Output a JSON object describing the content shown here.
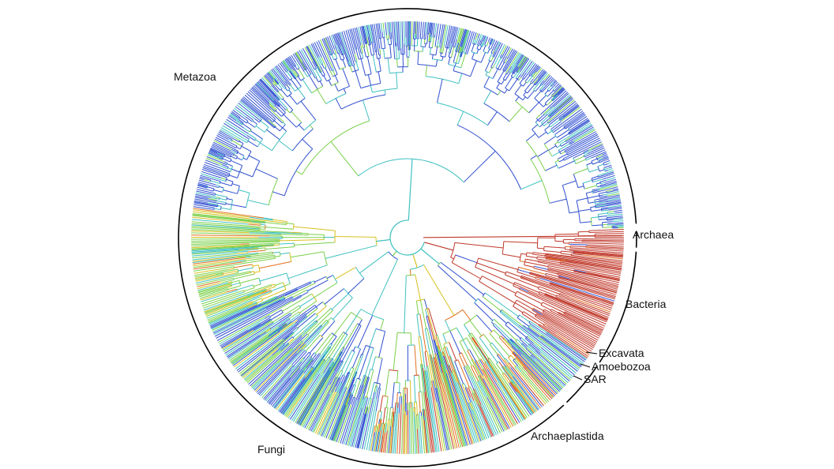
{
  "figure": {
    "type": "circular-phylogenetic-tree",
    "clades": [
      {
        "label": "Metazoa",
        "color": "#3f5fd0"
      },
      {
        "label": "Archaea",
        "color": "#c0392b"
      },
      {
        "label": "Bacteria",
        "color": "#c0392b"
      },
      {
        "label": "Excavata",
        "color": "#2e6fb5"
      },
      {
        "label": "Amoebozoa",
        "color": "#2e6fb5"
      },
      {
        "label": "SAR",
        "color": "#2e6fb5"
      },
      {
        "label": "Archaeplastida",
        "color": "#7ac943"
      },
      {
        "label": "Fungi",
        "color": "#2e6fb5"
      }
    ],
    "palette": {
      "blue": "#3050d0",
      "cyan": "#40c0c0",
      "green": "#7ad04a",
      "yellow": "#d8c020",
      "orange": "#e07020",
      "red": "#c0392b",
      "rim": "#000000"
    }
  }
}
